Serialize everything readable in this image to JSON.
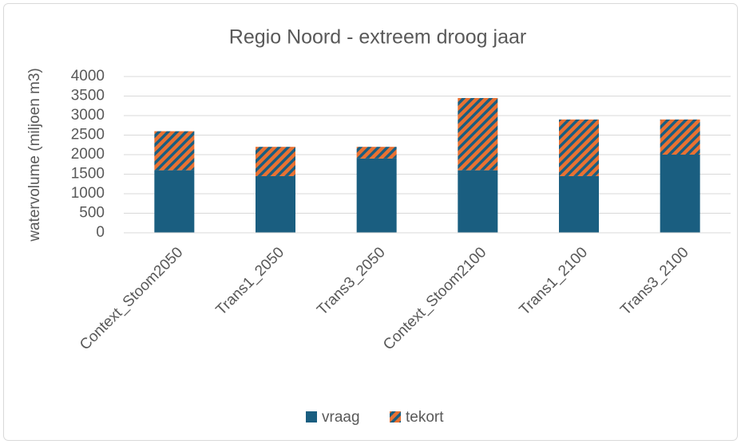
{
  "chart_data": {
    "type": "stacked-bar",
    "title": "Regio Noord - extreem droog jaar",
    "y_label": "watervolume (miljoen m3)",
    "categories": [
      "Context_Stoom2050",
      "Trans1_2050",
      "Trans3_2050",
      "Context_Stoom2100",
      "Trans1_2100",
      "Trans3_2100"
    ],
    "series": [
      {
        "name": "vraag",
        "color": "#1a5e80",
        "values": [
          1600,
          1450,
          1900,
          1600,
          1450,
          2000
        ]
      },
      {
        "name": "tekort",
        "color": "#e97132",
        "values": [
          1000,
          750,
          300,
          1850,
          1450,
          900
        ]
      }
    ],
    "ylim": [
      0,
      4000
    ],
    "yticks": [
      0,
      500,
      1000,
      1500,
      2000,
      2500,
      3000,
      3500,
      4000
    ],
    "grid": true,
    "legend": "bottom"
  }
}
